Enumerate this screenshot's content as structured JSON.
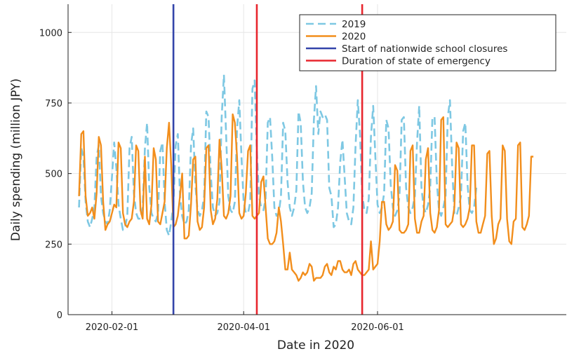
{
  "chart_data": {
    "type": "line",
    "xlabel": "Date in 2020",
    "ylabel": "Daily spending (million JPY)",
    "xlim": [
      "2020-01-12",
      "2020-08-26"
    ],
    "ylim": [
      0,
      1100
    ],
    "x_ticks": [
      {
        "date": "2020-02-01",
        "label": "2020-02-01"
      },
      {
        "date": "2020-04-01",
        "label": "2020-04-01"
      },
      {
        "date": "2020-06-01",
        "label": "2020-06-01"
      }
    ],
    "y_ticks": [
      0,
      250,
      500,
      750,
      1000
    ],
    "grid": true,
    "legend_position": "top-right",
    "x_start": "2020-01-17",
    "series": [
      {
        "name": "2019",
        "color": "#7ec8e3",
        "style": "dashed",
        "values": [
          380,
          590,
          560,
          400,
          330,
          310,
          340,
          380,
          560,
          600,
          420,
          360,
          330,
          320,
          370,
          490,
          610,
          520,
          390,
          340,
          300,
          310,
          350,
          590,
          630,
          430,
          360,
          340,
          340,
          380,
          590,
          680,
          450,
          360,
          340,
          330,
          360,
          580,
          610,
          400,
          300,
          280,
          330,
          390,
          600,
          640,
          420,
          350,
          320,
          330,
          370,
          600,
          660,
          460,
          370,
          350,
          370,
          420,
          720,
          700,
          500,
          380,
          350,
          360,
          400,
          700,
          850,
          640,
          420,
          370,
          360,
          400,
          660,
          760,
          560,
          400,
          360,
          360,
          400,
          800,
          830,
          580,
          420,
          380,
          370,
          410,
          680,
          700,
          560,
          380,
          350,
          360,
          420,
          680,
          650,
          470,
          380,
          350,
          380,
          440,
          720,
          680,
          470,
          380,
          360,
          380,
          430,
          690,
          810,
          640,
          720,
          700,
          710,
          690,
          450,
          420,
          310,
          320,
          380,
          540,
          620,
          490,
          360,
          330,
          320,
          380,
          600,
          760,
          640,
          430,
          370,
          360,
          410,
          630,
          740,
          560,
          390,
          360,
          380,
          430,
          690,
          660,
          460,
          380,
          350,
          370,
          420,
          690,
          700,
          450,
          380,
          360,
          380,
          420,
          610,
          740,
          450,
          380,
          360,
          390,
          450,
          700,
          700,
          470,
          370,
          350,
          380,
          420,
          700,
          760,
          520,
          360,
          350,
          380,
          420,
          650,
          680,
          460,
          370,
          360,
          380,
          450
        ]
      },
      {
        "name": "2020",
        "color": "#f28e1c",
        "style": "solid",
        "values": [
          420,
          640,
          650,
          420,
          350,
          360,
          380,
          340,
          430,
          630,
          600,
          400,
          300,
          320,
          330,
          360,
          390,
          380,
          610,
          590,
          360,
          320,
          310,
          330,
          340,
          400,
          600,
          580,
          370,
          340,
          560,
          340,
          320,
          390,
          590,
          550,
          330,
          320,
          360,
          400,
          590,
          680,
          530,
          310,
          320,
          350,
          420,
          500,
          270,
          270,
          280,
          390,
          550,
          560,
          330,
          300,
          310,
          380,
          590,
          600,
          370,
          320,
          340,
          410,
          620,
          520,
          350,
          340,
          360,
          420,
          710,
          680,
          560,
          360,
          340,
          350,
          430,
          580,
          600,
          350,
          340,
          350,
          360,
          470,
          490,
          380,
          270,
          250,
          250,
          260,
          290,
          380,
          330,
          250,
          160,
          160,
          220,
          160,
          150,
          140,
          120,
          130,
          150,
          140,
          150,
          180,
          170,
          120,
          130,
          130,
          130,
          140,
          170,
          180,
          150,
          140,
          170,
          160,
          190,
          190,
          160,
          150,
          150,
          160,
          140,
          180,
          190,
          160,
          150,
          140,
          140,
          150,
          160,
          260,
          160,
          170,
          180,
          260,
          400,
          400,
          320,
          300,
          310,
          330,
          530,
          510,
          300,
          290,
          290,
          300,
          320,
          580,
          600,
          340,
          290,
          290,
          330,
          350,
          550,
          590,
          360,
          300,
          290,
          310,
          370,
          690,
          700,
          320,
          310,
          320,
          330,
          380,
          610,
          590,
          320,
          310,
          320,
          340,
          380,
          600,
          600,
          330,
          290,
          290,
          320,
          350,
          570,
          580,
          350,
          250,
          270,
          320,
          340,
          600,
          580,
          340,
          260,
          250,
          330,
          340,
          600,
          610,
          310,
          300,
          320,
          350,
          560,
          560
        ]
      }
    ],
    "vlines": [
      {
        "name": "Start of nationwide school closures",
        "date": "2020-02-29",
        "color": "#3344aa"
      },
      {
        "name": "Duration of state of emergency",
        "date": "2020-04-07",
        "color": "#e8262e"
      },
      {
        "name": "Duration of state of emergency",
        "date": "2020-05-25",
        "color": "#e8262e",
        "legend": false
      }
    ]
  }
}
